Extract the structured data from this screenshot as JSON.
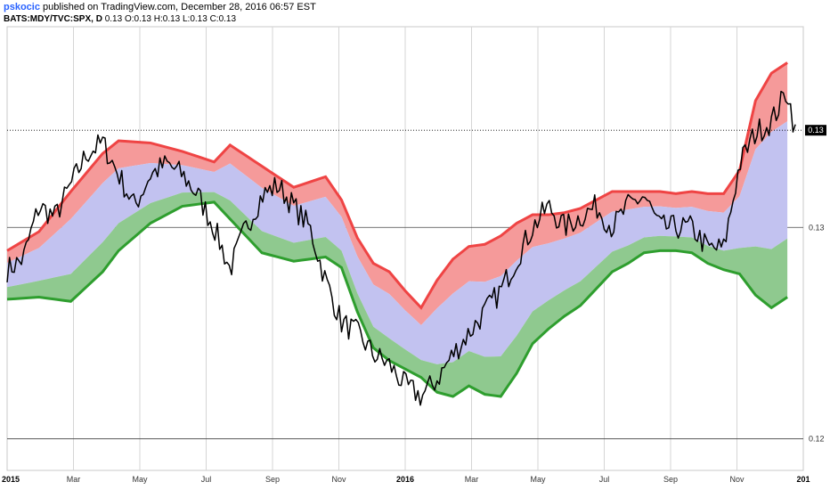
{
  "header": {
    "author": "pskocic",
    "published": " published on TradingView.com, December 28, 2016 06:57 EST",
    "symbol": "BATS:MDY/TVC:SPX, D",
    "ohlc": "0.13 O:0.13 H:0.13 L:0.13 C:0.13"
  },
  "colors": {
    "upper_band": "#ef4444",
    "upper_fill": "#f59a9a",
    "mid_fill": "#c2c2f0",
    "lower_fill": "#8fc98f",
    "lower_band": "#2e9e2e",
    "price": "#000000",
    "grid": "#d5d5d5",
    "hline": "#444444"
  },
  "chart_data": {
    "type": "line",
    "title": "",
    "xlabel": "",
    "ylabel": "",
    "x_ticks": [
      "2015",
      "Mar",
      "May",
      "Jul",
      "Sep",
      "Nov",
      "2016",
      "Mar",
      "May",
      "Jul",
      "Sep",
      "Nov",
      "201"
    ],
    "x_tick_bold": [
      true,
      false,
      false,
      false,
      false,
      false,
      true,
      false,
      false,
      false,
      false,
      false,
      true
    ],
    "y_ticks": [
      "0.13",
      "0.12"
    ],
    "y_ticks_values": [
      0.13,
      0.12
    ],
    "last_value_label": "0.13",
    "last_value": 0.1346,
    "ylim": [
      0.1185,
      0.1395
    ],
    "x_range": [
      0,
      100
    ],
    "series": [
      {
        "key": "price",
        "x": [
          0,
          2,
          4,
          6,
          8,
          10,
          12,
          14,
          16,
          18,
          20,
          22,
          24,
          26,
          28,
          30,
          32,
          34,
          36,
          38,
          40,
          42,
          44,
          46,
          48,
          50,
          52,
          54,
          56,
          58,
          60,
          62,
          64,
          66,
          68,
          70,
          72,
          74,
          76,
          78,
          80,
          82,
          84,
          86,
          88,
          90,
          92,
          94,
          96,
          98,
          99
        ],
        "values": [
          0.128,
          0.1285,
          0.131,
          0.1305,
          0.132,
          0.1335,
          0.134,
          0.1325,
          0.131,
          0.1325,
          0.133,
          0.1325,
          0.1315,
          0.13,
          0.128,
          0.13,
          0.1315,
          0.132,
          0.131,
          0.13,
          0.1275,
          0.1255,
          0.125,
          0.124,
          0.1235,
          0.1225,
          0.122,
          0.1228,
          0.124,
          0.125,
          0.126,
          0.127,
          0.1285,
          0.13,
          0.131,
          0.13,
          0.1305,
          0.131,
          0.13,
          0.131,
          0.1315,
          0.13,
          0.13,
          0.13,
          0.129,
          0.129,
          0.133,
          0.1345,
          0.135,
          0.1365,
          0.1345
        ]
      },
      {
        "key": "upper_band",
        "x": [
          0,
          4,
          8,
          12,
          14,
          18,
          22,
          26,
          28,
          32,
          36,
          40,
          42,
          44,
          46,
          48,
          50,
          52,
          54,
          56,
          58,
          60,
          62,
          64,
          66,
          68,
          70,
          72,
          74,
          76,
          78,
          80,
          82,
          84,
          86,
          88,
          90,
          92,
          94,
          96,
          98
        ],
        "values": [
          0.1289,
          0.1298,
          0.1317,
          0.1335,
          0.1341,
          0.134,
          0.1336,
          0.1331,
          0.1339,
          0.1329,
          0.1319,
          0.1324,
          0.1313,
          0.1295,
          0.1283,
          0.1279,
          0.127,
          0.1262,
          0.1275,
          0.1285,
          0.1291,
          0.1292,
          0.1296,
          0.1302,
          0.1306,
          0.1306,
          0.1307,
          0.1309,
          0.1313,
          0.1317,
          0.1317,
          0.1317,
          0.1317,
          0.1316,
          0.1317,
          0.1316,
          0.1316,
          0.1327,
          0.136,
          0.1373,
          0.1378
        ]
      },
      {
        "key": "lower_band",
        "x": [
          0,
          4,
          8,
          12,
          14,
          18,
          22,
          26,
          28,
          32,
          36,
          40,
          42,
          44,
          46,
          48,
          50,
          52,
          54,
          56,
          58,
          60,
          62,
          64,
          66,
          68,
          70,
          72,
          74,
          76,
          78,
          80,
          82,
          84,
          86,
          88,
          90,
          92,
          94,
          96,
          98
        ],
        "values": [
          0.1266,
          0.1267,
          0.1265,
          0.1279,
          0.1289,
          0.1302,
          0.131,
          0.1312,
          0.1304,
          0.1288,
          0.1284,
          0.1286,
          0.1281,
          0.126,
          0.1243,
          0.1237,
          0.1233,
          0.1229,
          0.1222,
          0.122,
          0.1225,
          0.1221,
          0.122,
          0.1231,
          0.1245,
          0.1252,
          0.1258,
          0.1263,
          0.1271,
          0.1279,
          0.1283,
          0.1288,
          0.1289,
          0.1289,
          0.1288,
          0.1283,
          0.128,
          0.1278,
          0.1268,
          0.1262,
          0.1267
        ]
      }
    ]
  }
}
